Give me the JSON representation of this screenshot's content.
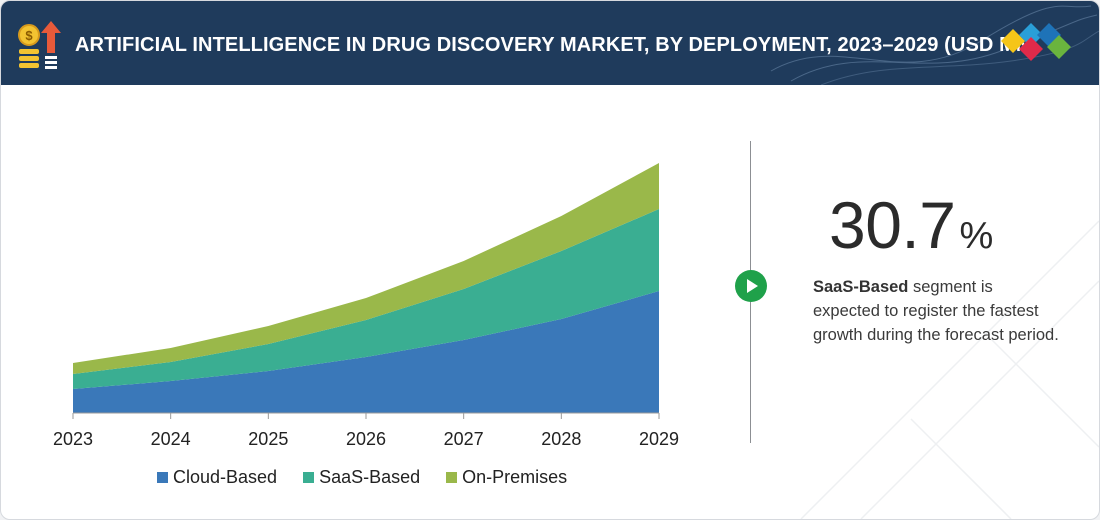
{
  "header": {
    "title": "ARTIFICIAL INTELLIGENCE IN DRUG DISCOVERY MARKET, BY DEPLOYMENT, 2023–2029 (USD MN)"
  },
  "colors": {
    "header_bg": "#1f3b5c",
    "cloud": "#3a78b9",
    "saas": "#3aae92",
    "onprem": "#9ab84a",
    "play": "#1fa14a"
  },
  "icons": [
    "money-growth-icon",
    "brand-logo-icon",
    "play-icon"
  ],
  "highlight": {
    "value": "30.7",
    "unit": "%",
    "segment": "SaaS-Based",
    "text": " segment is expected to register the fastest growth during the forecast period."
  },
  "chart_data": {
    "type": "area",
    "stacked": true,
    "categories": [
      "2023",
      "2024",
      "2025",
      "2026",
      "2027",
      "2028",
      "2029"
    ],
    "series": [
      {
        "name": "Cloud-Based",
        "values": [
          24,
          32,
          42,
          56,
          73,
          94,
          122
        ]
      },
      {
        "name": "SaaS-Based",
        "values": [
          15,
          19,
          27,
          37,
          51,
          68,
          82
        ]
      },
      {
        "name": "On-Premises",
        "values": [
          11,
          14,
          18,
          22,
          28,
          35,
          46
        ]
      }
    ],
    "ylim": [
      0,
      254
    ],
    "grid": false,
    "legend": "bottom"
  }
}
